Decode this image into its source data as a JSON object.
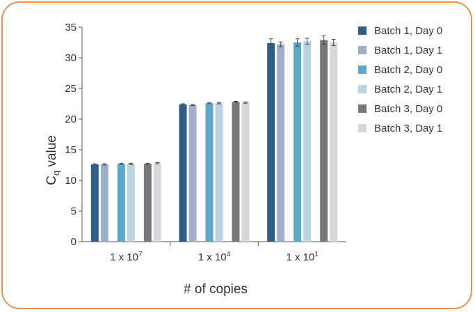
{
  "chart_data": {
    "type": "bar",
    "title": "",
    "xlabel": "# of copies",
    "ylabel": {
      "main": "C",
      "sub": "q",
      "rest": " value"
    },
    "ylim": [
      0,
      35
    ],
    "yticks": [
      0,
      5,
      10,
      15,
      20,
      25,
      30,
      35
    ],
    "grid": false,
    "legend_position": "right",
    "categories": [
      {
        "base": "1 x 10",
        "exp": "7"
      },
      {
        "base": "1 x 10",
        "exp": "4"
      },
      {
        "base": "1 x 10",
        "exp": "1"
      }
    ],
    "series": [
      {
        "name": "Batch 1, Day 0",
        "color": "#2d5f8a",
        "values": [
          12.6,
          22.4,
          32.4
        ],
        "errors": [
          0.1,
          0.1,
          0.7
        ]
      },
      {
        "name": "Batch 1, Day 1",
        "color": "#a2adc8",
        "values": [
          12.6,
          22.3,
          32.2
        ],
        "errors": [
          0.1,
          0.1,
          0.4
        ]
      },
      {
        "name": "Batch 2, Day 0",
        "color": "#5aaac7",
        "values": [
          12.7,
          22.6,
          32.5
        ],
        "errors": [
          0.1,
          0.1,
          0.6
        ]
      },
      {
        "name": "Batch 2, Day 1",
        "color": "#b8d4e3",
        "values": [
          12.7,
          22.6,
          32.7
        ],
        "errors": [
          0.1,
          0.1,
          0.5
        ]
      },
      {
        "name": "Batch 3, Day 0",
        "color": "#77787c",
        "values": [
          12.7,
          22.8,
          32.9
        ],
        "errors": [
          0.1,
          0.1,
          0.7
        ]
      },
      {
        "name": "Batch 3, Day 1",
        "color": "#d7d7d7",
        "values": [
          12.8,
          22.7,
          32.5
        ],
        "errors": [
          0.1,
          0.1,
          0.5
        ]
      }
    ]
  }
}
